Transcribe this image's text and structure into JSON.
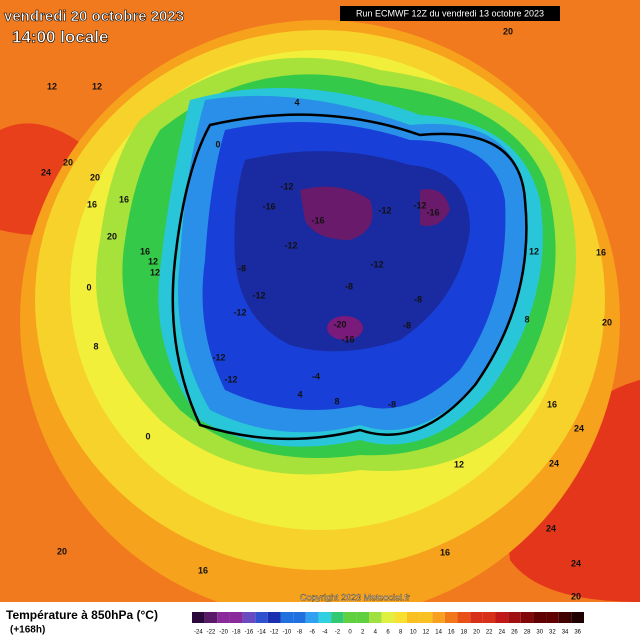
{
  "header": {
    "date": "vendredi 20 octobre 2023",
    "time": "14:00 locale",
    "run": "Run ECMWF 12Z du vendredi 13 octobre 2023"
  },
  "map": {
    "contour_labels": [
      "20",
      "12",
      "12",
      "24",
      "20",
      "20",
      "16",
      "16",
      "20",
      "16",
      "12",
      "12",
      "0",
      "8",
      "4",
      "0",
      "-12",
      "-16",
      "-16",
      "-12",
      "-12",
      "-12",
      "-16",
      "-12",
      "-8",
      "-12",
      "-12",
      "-8",
      "-8",
      "-20",
      "-16",
      "-8",
      "-12",
      "-12",
      "-4",
      "-8",
      "16",
      "24",
      "24",
      "24",
      "24",
      "16",
      "12",
      "20",
      "16",
      "20",
      "12",
      "16",
      "20",
      "8",
      "0",
      "4",
      "8"
    ],
    "copyright": "Copyright 2023 Meteociel.fr"
  },
  "legend": {
    "title": "Température à 850hPa (°C)",
    "lead": "(+168h)",
    "ticks": [
      -24,
      -22,
      -20,
      -18,
      -16,
      -14,
      -12,
      -10,
      -8,
      -6,
      -4,
      -2,
      0,
      2,
      4,
      6,
      8,
      10,
      12,
      14,
      16,
      18,
      20,
      22,
      24,
      26,
      28,
      30,
      32,
      34,
      36
    ]
  }
}
